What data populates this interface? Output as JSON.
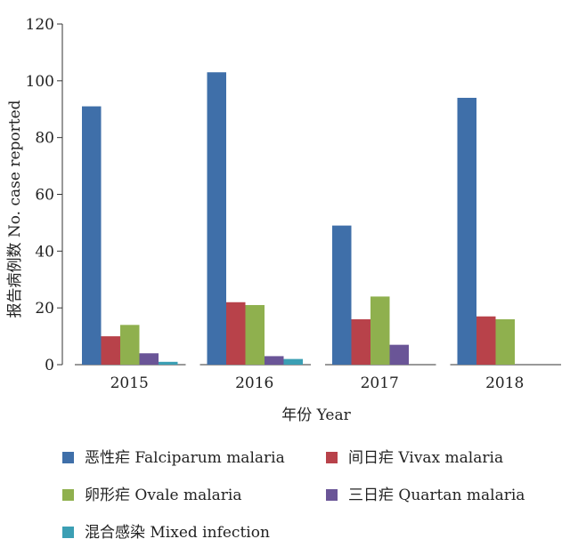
{
  "chart_data": {
    "type": "bar",
    "categories": [
      "2015",
      "2016",
      "2017",
      "2018"
    ],
    "series": [
      {
        "name": "恶性疟 Falciparum malaria",
        "color": "#3f6fa9",
        "values": [
          91,
          103,
          49,
          94
        ]
      },
      {
        "name": "间日疟 Vivax malaria",
        "color": "#b8424a",
        "values": [
          10,
          22,
          16,
          17
        ]
      },
      {
        "name": "卵形疟 Ovale malaria",
        "color": "#8fb04e",
        "values": [
          14,
          21,
          24,
          16
        ]
      },
      {
        "name": "三日疟 Quartan malaria",
        "color": "#6a5597",
        "values": [
          4,
          3,
          7,
          0
        ]
      },
      {
        "name": "混合感染 Mixed infection",
        "color": "#3b9fb4",
        "values": [
          1,
          2,
          0,
          0
        ]
      }
    ],
    "xlabel": "年份 Year",
    "ylabel": "报告病例数 No. case reported",
    "ylim": [
      0,
      120
    ],
    "yticks": [
      0,
      20,
      40,
      60,
      80,
      100,
      120
    ],
    "grid": false,
    "legend_position": "bottom"
  }
}
